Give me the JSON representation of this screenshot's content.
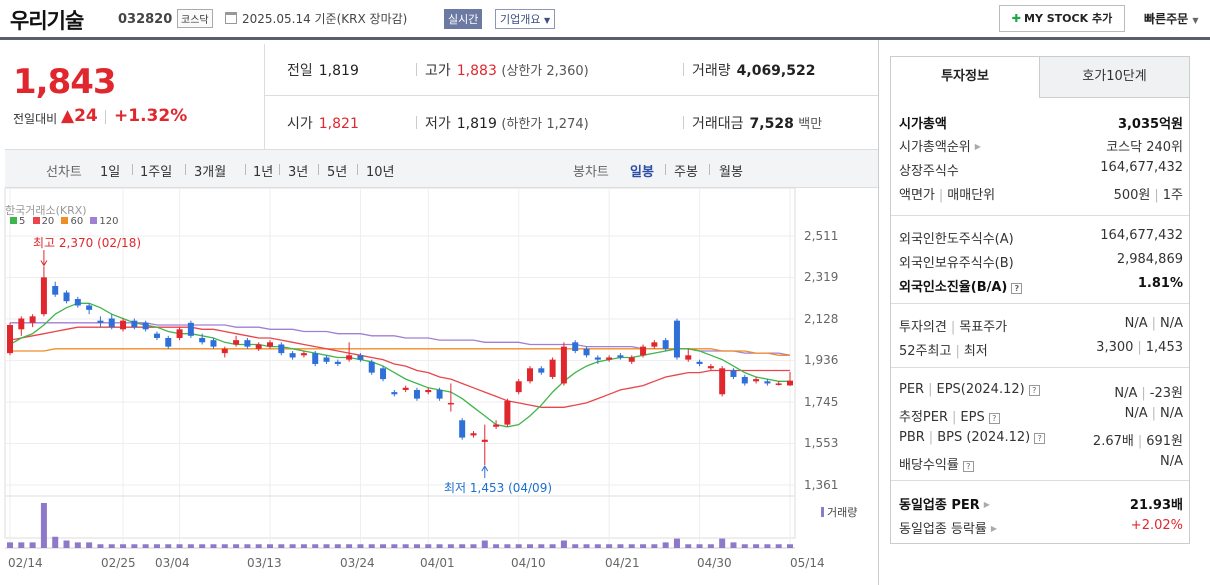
{
  "header": {
    "company": "우리기술",
    "code": "032820",
    "market_badge": "코스닥",
    "date": "2025.05.14 기준(KRX 장마감)",
    "live_badge": "실시간",
    "info_badge": "기업개요",
    "mystock_button": "MY STOCK 추가",
    "quick_order": "빠른주문"
  },
  "price": {
    "current": "1,843",
    "change_label": "전일대비",
    "change_value": "▲24",
    "change_pct": "+1.32%",
    "prev_close_label": "전일",
    "prev_close": "1,819",
    "open_label": "시가",
    "open": "1,821",
    "high_label": "고가",
    "high": "1,883",
    "upper_limit": "(상한가 2,360)",
    "low_label": "저가",
    "low": "1,819",
    "lower_limit": "(하한가 1,274)",
    "volume_label": "거래량",
    "volume": "4,069,522",
    "amount_label": "거래대금",
    "amount": "7,528",
    "amount_unit": "백만"
  },
  "tabs": {
    "line_label": "선차트",
    "periods": [
      "1일",
      "1주일",
      "3개월",
      "1년",
      "3년",
      "5년",
      "10년"
    ],
    "candle_label": "봉차트",
    "candles": [
      "일봉",
      "주봉",
      "월봉"
    ],
    "active_candle": "일봉"
  },
  "chart_data": {
    "type": "candlestick",
    "source_label": "한국거래소(KRX)",
    "legend": [
      "5",
      "20",
      "60",
      "120"
    ],
    "ma_colors": {
      "5": "#3fb64b",
      "20": "#e8464b",
      "60": "#f08d28",
      "120": "#a07fd6"
    },
    "up_color": "#e0272e",
    "down_color": "#2f6fd8",
    "volume_color": "#8d78c9",
    "volume_label": "거래량",
    "y_ticks": [
      "2,511",
      "2,319",
      "2,128",
      "1,936",
      "1,745",
      "1,553",
      "1,361"
    ],
    "ylim": [
      1361,
      2511
    ],
    "x_ticks": [
      "02/14",
      "02/25",
      "03/04",
      "03/13",
      "03/24",
      "04/01",
      "04/10",
      "04/21",
      "04/30",
      "05/14"
    ],
    "high_annotation": "최고 2,370 (02/18)",
    "low_annotation": "최저 1,453 (04/09)",
    "candles": [
      [
        1970,
        2100,
        1960,
        2110
      ],
      [
        2080,
        2130,
        2050,
        2140
      ],
      [
        2110,
        2140,
        2090,
        2150
      ],
      [
        2150,
        2320,
        2140,
        2370
      ],
      [
        2280,
        2240,
        2230,
        2300
      ],
      [
        2250,
        2210,
        2200,
        2260
      ],
      [
        2220,
        2190,
        2180,
        2230
      ],
      [
        2190,
        2170,
        2150,
        2200
      ],
      [
        2120,
        2110,
        2090,
        2140
      ],
      [
        2130,
        2090,
        2080,
        2150
      ],
      [
        2080,
        2120,
        2070,
        2130
      ],
      [
        2120,
        2090,
        2080,
        2130
      ],
      [
        2110,
        2080,
        2070,
        2120
      ],
      [
        2060,
        2040,
        2030,
        2070
      ],
      [
        2040,
        2000,
        1990,
        2050
      ],
      [
        2040,
        2080,
        2030,
        2090
      ],
      [
        2110,
        2050,
        2040,
        2120
      ],
      [
        2040,
        2020,
        2010,
        2060
      ],
      [
        2030,
        2000,
        1990,
        2040
      ],
      [
        1970,
        1990,
        1950,
        2000
      ],
      [
        2010,
        2030,
        2000,
        2050
      ],
      [
        2030,
        2000,
        1990,
        2040
      ],
      [
        1990,
        2010,
        1980,
        2020
      ],
      [
        2000,
        2020,
        1990,
        2030
      ],
      [
        2010,
        1970,
        1960,
        2020
      ],
      [
        1970,
        1950,
        1940,
        1980
      ],
      [
        1960,
        1970,
        1950,
        1980
      ],
      [
        1970,
        1920,
        1910,
        1980
      ],
      [
        1950,
        1930,
        1920,
        1960
      ],
      [
        1930,
        1920,
        1910,
        1940
      ],
      [
        1940,
        1960,
        1930,
        2020
      ],
      [
        1960,
        1940,
        1930,
        1970
      ],
      [
        1930,
        1880,
        1870,
        1940
      ],
      [
        1900,
        1850,
        1840,
        1910
      ],
      [
        1790,
        1780,
        1770,
        1800
      ],
      [
        1800,
        1810,
        1790,
        1820
      ],
      [
        1800,
        1760,
        1750,
        1810
      ],
      [
        1790,
        1800,
        1780,
        1810
      ],
      [
        1800,
        1760,
        1750,
        1810
      ],
      [
        1740,
        1740,
        1700,
        1830
      ],
      [
        1660,
        1580,
        1570,
        1670
      ],
      [
        1590,
        1600,
        1580,
        1610
      ],
      [
        1560,
        1570,
        1453,
        1640
      ],
      [
        1630,
        1640,
        1620,
        1660
      ],
      [
        1640,
        1750,
        1630,
        1760
      ],
      [
        1790,
        1840,
        1780,
        1850
      ],
      [
        1840,
        1900,
        1830,
        1910
      ],
      [
        1900,
        1880,
        1870,
        1910
      ],
      [
        1860,
        1940,
        1850,
        1950
      ],
      [
        1830,
        2000,
        1820,
        2020
      ],
      [
        2020,
        1980,
        1970,
        2030
      ],
      [
        1990,
        1960,
        1950,
        2000
      ],
      [
        1950,
        1940,
        1920,
        1960
      ],
      [
        1940,
        1950,
        1930,
        1960
      ],
      [
        1960,
        1950,
        1940,
        1970
      ],
      [
        1930,
        1950,
        1920,
        1960
      ],
      [
        1960,
        2000,
        1950,
        2010
      ],
      [
        2000,
        2020,
        1990,
        2030
      ],
      [
        2030,
        1990,
        1980,
        2040
      ],
      [
        2120,
        1950,
        1940,
        2130
      ],
      [
        1940,
        1960,
        1930,
        1990
      ],
      [
        1930,
        1920,
        1910,
        1940
      ],
      [
        1900,
        1910,
        1890,
        1920
      ],
      [
        1780,
        1900,
        1770,
        1910
      ],
      [
        1890,
        1860,
        1850,
        1900
      ],
      [
        1860,
        1830,
        1820,
        1870
      ],
      [
        1840,
        1850,
        1830,
        1860
      ],
      [
        1840,
        1830,
        1820,
        1850
      ],
      [
        1830,
        1830,
        1820,
        1840
      ],
      [
        1821,
        1843,
        1819,
        1883
      ]
    ],
    "ma5": [
      2010,
      2040,
      2060,
      2100,
      2150,
      2180,
      2200,
      2200,
      2180,
      2150,
      2130,
      2110,
      2100,
      2090,
      2070,
      2060,
      2060,
      2050,
      2040,
      2020,
      2010,
      2010,
      2010,
      2000,
      2000,
      1990,
      1980,
      1970,
      1960,
      1950,
      1950,
      1940,
      1930,
      1910,
      1880,
      1850,
      1830,
      1810,
      1800,
      1790,
      1760,
      1720,
      1680,
      1640,
      1630,
      1640,
      1680,
      1730,
      1790,
      1840,
      1880,
      1910,
      1930,
      1940,
      1950,
      1950,
      1960,
      1970,
      1980,
      1990,
      1990,
      1980,
      1960,
      1940,
      1910,
      1880,
      1860,
      1850,
      1840,
      1840
    ],
    "ma20": [
      2030,
      2040,
      2050,
      2060,
      2070,
      2080,
      2090,
      2090,
      2090,
      2090,
      2090,
      2090,
      2090,
      2090,
      2090,
      2090,
      2090,
      2080,
      2080,
      2070,
      2060,
      2050,
      2040,
      2040,
      2030,
      2020,
      2010,
      2000,
      1990,
      1980,
      1970,
      1960,
      1950,
      1940,
      1920,
      1910,
      1890,
      1880,
      1860,
      1850,
      1830,
      1810,
      1790,
      1770,
      1750,
      1740,
      1730,
      1720,
      1720,
      1720,
      1730,
      1740,
      1760,
      1780,
      1800,
      1810,
      1820,
      1840,
      1860,
      1870,
      1880,
      1880,
      1890,
      1890,
      1890,
      1890,
      1890,
      1890,
      1890,
      1890
    ],
    "ma60": [
      1980,
      1980,
      1980,
      1980,
      1990,
      1990,
      1990,
      1990,
      1990,
      1990,
      1990,
      1990,
      1990,
      1990,
      1990,
      1990,
      1990,
      1990,
      1990,
      1990,
      1990,
      1990,
      1990,
      1990,
      1990,
      1990,
      1990,
      1990,
      1990,
      1990,
      1990,
      1990,
      1990,
      1990,
      1990,
      1990,
      1990,
      1990,
      1990,
      1990,
      1990,
      1990,
      1990,
      1990,
      1990,
      1990,
      1990,
      1990,
      1990,
      1990,
      1990,
      1990,
      1990,
      1990,
      1990,
      1990,
      1990,
      1990,
      1990,
      1990,
      1990,
      1990,
      1990,
      1980,
      1980,
      1980,
      1970,
      1970,
      1960,
      1960
    ],
    "ma120": [
      2110,
      2110,
      2110,
      2110,
      2110,
      2110,
      2110,
      2110,
      2110,
      2110,
      2110,
      2110,
      2110,
      2100,
      2100,
      2100,
      2100,
      2100,
      2100,
      2100,
      2090,
      2090,
      2090,
      2080,
      2080,
      2080,
      2070,
      2070,
      2070,
      2060,
      2060,
      2060,
      2050,
      2050,
      2050,
      2040,
      2040,
      2040,
      2030,
      2030,
      2030,
      2030,
      2020,
      2020,
      2020,
      2020,
      2010,
      2010,
      2010,
      2010,
      2010,
      2000,
      2000,
      2000,
      2000,
      2000,
      1990,
      1990,
      1990,
      1990,
      1990,
      1980,
      1980,
      1980,
      1980,
      1970,
      1970,
      1970,
      1970,
      1960
    ],
    "volume": [
      3,
      3,
      3,
      24,
      6,
      4,
      3,
      3,
      2,
      2,
      2,
      2,
      2,
      2,
      2,
      2,
      2,
      2,
      2,
      2,
      2,
      2,
      2,
      2,
      2,
      2,
      2,
      2,
      2,
      2,
      2,
      2,
      2,
      2,
      2,
      2,
      2,
      2,
      2,
      2,
      2,
      2,
      4,
      2,
      2,
      2,
      2,
      2,
      2,
      4,
      2,
      2,
      2,
      2,
      2,
      2,
      2,
      2,
      3,
      5,
      2,
      2,
      2,
      5,
      3,
      2,
      2,
      2,
      2,
      2
    ]
  },
  "side": {
    "tabs": [
      "투자정보",
      "호가10단계"
    ],
    "market_cap_label": "시가총액",
    "market_cap": "3,035억원",
    "cap_rank_label": "시가총액순위",
    "cap_rank": "코스닥 240위",
    "shares_label": "상장주식수",
    "shares": "164,677,432",
    "par_label": "액면가",
    "unit_label": "매매단위",
    "par": "500원",
    "unit": "1주",
    "foreign_limit_label": "외국인한도주식수(A)",
    "foreign_limit": "164,677,432",
    "foreign_hold_label": "외국인보유주식수(B)",
    "foreign_hold": "2,984,869",
    "foreign_ratio_label": "외국인소진율(B/A)",
    "foreign_ratio": "1.81%",
    "opinion_label": "투자의견",
    "target_label": "목표주가",
    "opinion": "N/A",
    "target": "N/A",
    "w52_high_label": "52주최고",
    "w52_low_label": "최저",
    "w52_high": "3,300",
    "w52_low": "1,453",
    "per_label": "PER",
    "eps_label": "EPS(2024.12)",
    "per": "N/A",
    "eps": "-23원",
    "est_per_label": "추정PER",
    "est_eps_label": "EPS",
    "est_per": "N/A",
    "est_eps": "N/A",
    "pbr_label": "PBR",
    "bps_label": "BPS (2024.12)",
    "pbr": "2.67배",
    "bps": "691원",
    "div_label": "배당수익률",
    "div": "N/A",
    "ind_per_label": "동일업종 PER",
    "ind_per": "21.93배",
    "ind_rate_label": "동일업종 등락률",
    "ind_rate": "+2.02%"
  }
}
